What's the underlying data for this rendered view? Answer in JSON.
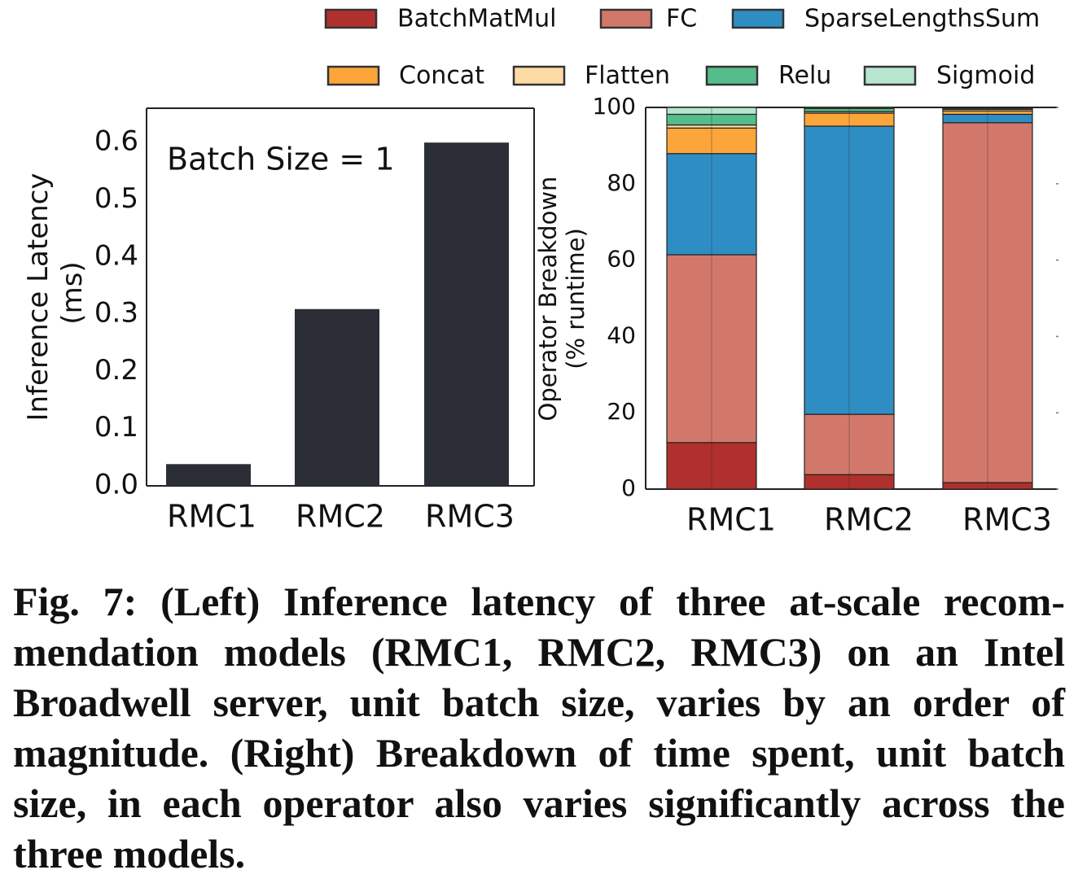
{
  "figure": {
    "caption": "Fig. 7: (Left) Inference latency of three at-scale recom-mendation models (RMC1, RMC2, RMC3) on an Intel Broadwell server, unit batch size, varies by an order of magnitude. (Right) Breakdown of time spent, unit batch size, in each operator also varies significantly across the three models."
  },
  "legend": {
    "placement": "top-right",
    "items": [
      {
        "name": "BatchMatMul",
        "color": "#b0302d"
      },
      {
        "name": "FC",
        "color": "#d2786a"
      },
      {
        "name": "SparseLengthsSum",
        "color": "#2e8ec4"
      },
      {
        "name": "Concat",
        "color": "#fca53a"
      },
      {
        "name": "Flatten",
        "color": "#fddba5"
      },
      {
        "name": "Relu",
        "color": "#55bd8a"
      },
      {
        "name": "Sigmoid",
        "color": "#b7e5cf"
      }
    ]
  },
  "chart_data": [
    {
      "type": "bar",
      "annotation": "Batch Size = 1",
      "xlabel": "",
      "ylabel": "Inference Latency\n(ms)",
      "categories": [
        "RMC1",
        "RMC2",
        "RMC3"
      ],
      "values": [
        0.038,
        0.309,
        0.6
      ],
      "ylim": [
        0,
        0.66
      ],
      "yticks": [
        "0.0",
        "0.1",
        "0.2",
        "0.3",
        "0.4",
        "0.5",
        "0.6"
      ],
      "color": "#2b2e37",
      "grid": false
    },
    {
      "type": "bar",
      "stacked": true,
      "xlabel": "",
      "ylabel": "Operator Breakdown\n(% runtime)",
      "categories": [
        "RMC1",
        "RMC2",
        "RMC3"
      ],
      "ylim": [
        0,
        100
      ],
      "yticks": [
        "0",
        "20",
        "40",
        "60",
        "80",
        "100"
      ],
      "grid": false,
      "series": [
        {
          "name": "BatchMatMul",
          "values": [
            12.2,
            3.8,
            1.7
          ]
        },
        {
          "name": "FC",
          "values": [
            49.2,
            15.8,
            94.3
          ]
        },
        {
          "name": "SparseLengthsSum",
          "values": [
            26.5,
            75.5,
            2.2
          ]
        },
        {
          "name": "Concat",
          "values": [
            6.7,
            3.4,
            0.9
          ]
        },
        {
          "name": "Flatten",
          "values": [
            0.8,
            0.4,
            0.4
          ]
        },
        {
          "name": "Relu",
          "values": [
            2.8,
            0.8,
            0.3
          ]
        },
        {
          "name": "Sigmoid",
          "values": [
            1.8,
            0.3,
            0.2
          ]
        }
      ]
    }
  ]
}
